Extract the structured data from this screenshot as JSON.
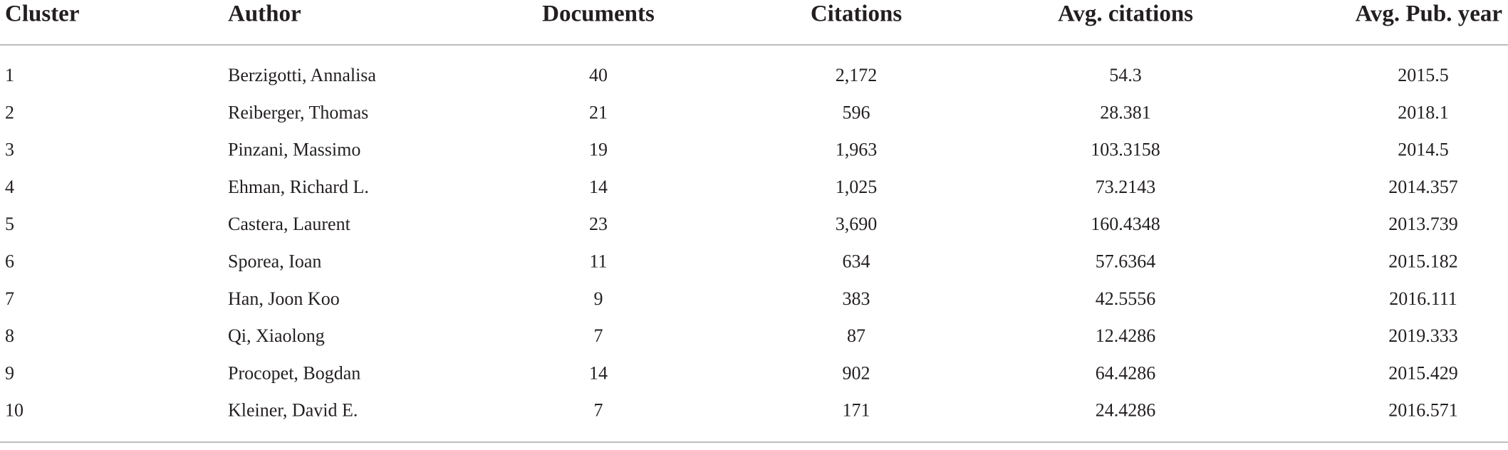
{
  "table": {
    "header": [
      "Cluster",
      "Author",
      "Documents",
      "Citations",
      "Avg. citations",
      "Avg. Pub. year"
    ],
    "rows": [
      [
        "1",
        "Berzigotti, Annalisa",
        "40",
        "2,172",
        "54.3",
        "2015.5"
      ],
      [
        "2",
        "Reiberger, Thomas",
        "21",
        "596",
        "28.381",
        "2018.1"
      ],
      [
        "3",
        "Pinzani, Massimo",
        "19",
        "1,963",
        "103.3158",
        "2014.5"
      ],
      [
        "4",
        "Ehman, Richard L.",
        "14",
        "1,025",
        "73.2143",
        "2014.357"
      ],
      [
        "5",
        "Castera, Laurent",
        "23",
        "3,690",
        "160.4348",
        "2013.739"
      ],
      [
        "6",
        "Sporea, Ioan",
        "11",
        "634",
        "57.6364",
        "2015.182"
      ],
      [
        "7",
        "Han, Joon Koo",
        "9",
        "383",
        "42.5556",
        "2016.111"
      ],
      [
        "8",
        "Qi, Xiaolong",
        "7",
        "87",
        "12.4286",
        "2019.333"
      ],
      [
        "9",
        "Procopet, Bogdan",
        "14",
        "902",
        "64.4286",
        "2015.429"
      ],
      [
        "10",
        "Kleiner, David E.",
        "7",
        "171",
        "24.4286",
        "2016.571"
      ]
    ]
  }
}
